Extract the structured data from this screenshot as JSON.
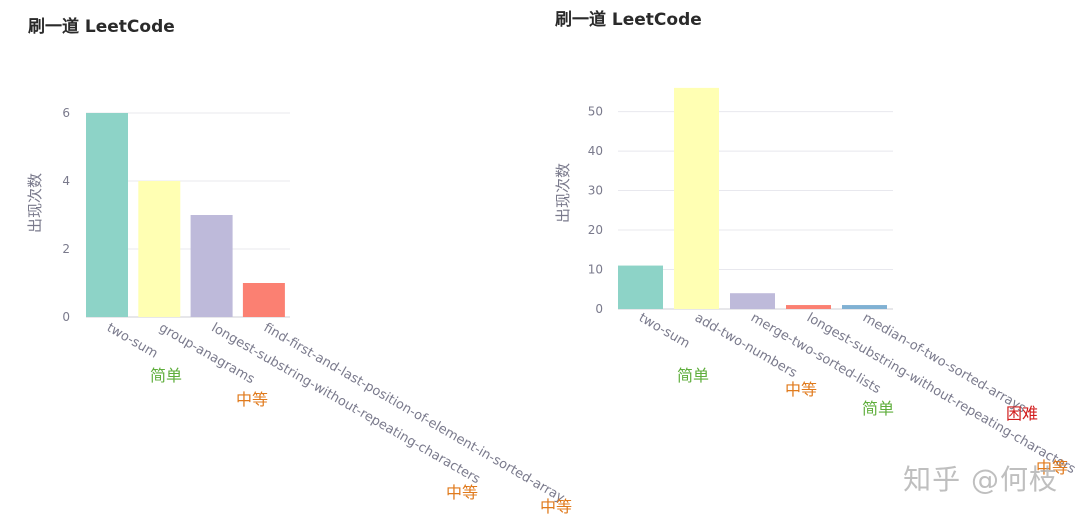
{
  "watermark": "知乎 @何枝",
  "colors": {
    "easy": "#5fae3c",
    "medium": "#e07a1c",
    "hard": "#d11c1c"
  },
  "chart_data": [
    {
      "type": "bar",
      "title": "刷一道 LeetCode",
      "ylabel": "出现次数",
      "ylim": [
        0,
        6.5
      ],
      "yticks": [
        0,
        2,
        4,
        6
      ],
      "grid": true,
      "categories": [
        "two-sum",
        "group-anagrams",
        "longest-substring-without-repeating-characters",
        "find-first-and-last-position-of-element-in-sorted-array"
      ],
      "values": [
        6,
        4,
        3,
        1
      ],
      "bar_colors": [
        "#8dd3c7",
        "#ffffb3",
        "#bebada",
        "#fb8072"
      ],
      "difficulty": [
        "简单",
        "中等",
        "中等",
        "中等"
      ],
      "difficulty_level": [
        "easy",
        "medium",
        "medium",
        "medium"
      ]
    },
    {
      "type": "bar",
      "title": "刷一道 LeetCode",
      "ylabel": "出现次数",
      "ylim": [
        0,
        58
      ],
      "yticks": [
        0,
        10,
        20,
        30,
        40,
        50
      ],
      "grid": true,
      "categories": [
        "two-sum",
        "add-two-numbers",
        "merge-two-sorted-lists",
        "longest-substring-without-repeating-characters",
        "median-of-two-sorted-arrays"
      ],
      "values": [
        11,
        56,
        4,
        1,
        1
      ],
      "bar_colors": [
        "#8dd3c7",
        "#ffffb3",
        "#bebada",
        "#fb8072",
        "#80b1d3"
      ],
      "difficulty": [
        "简单",
        "中等",
        "简单",
        "中等",
        "困难"
      ],
      "difficulty_level": [
        "easy",
        "medium",
        "easy",
        "medium",
        "hard"
      ]
    }
  ]
}
